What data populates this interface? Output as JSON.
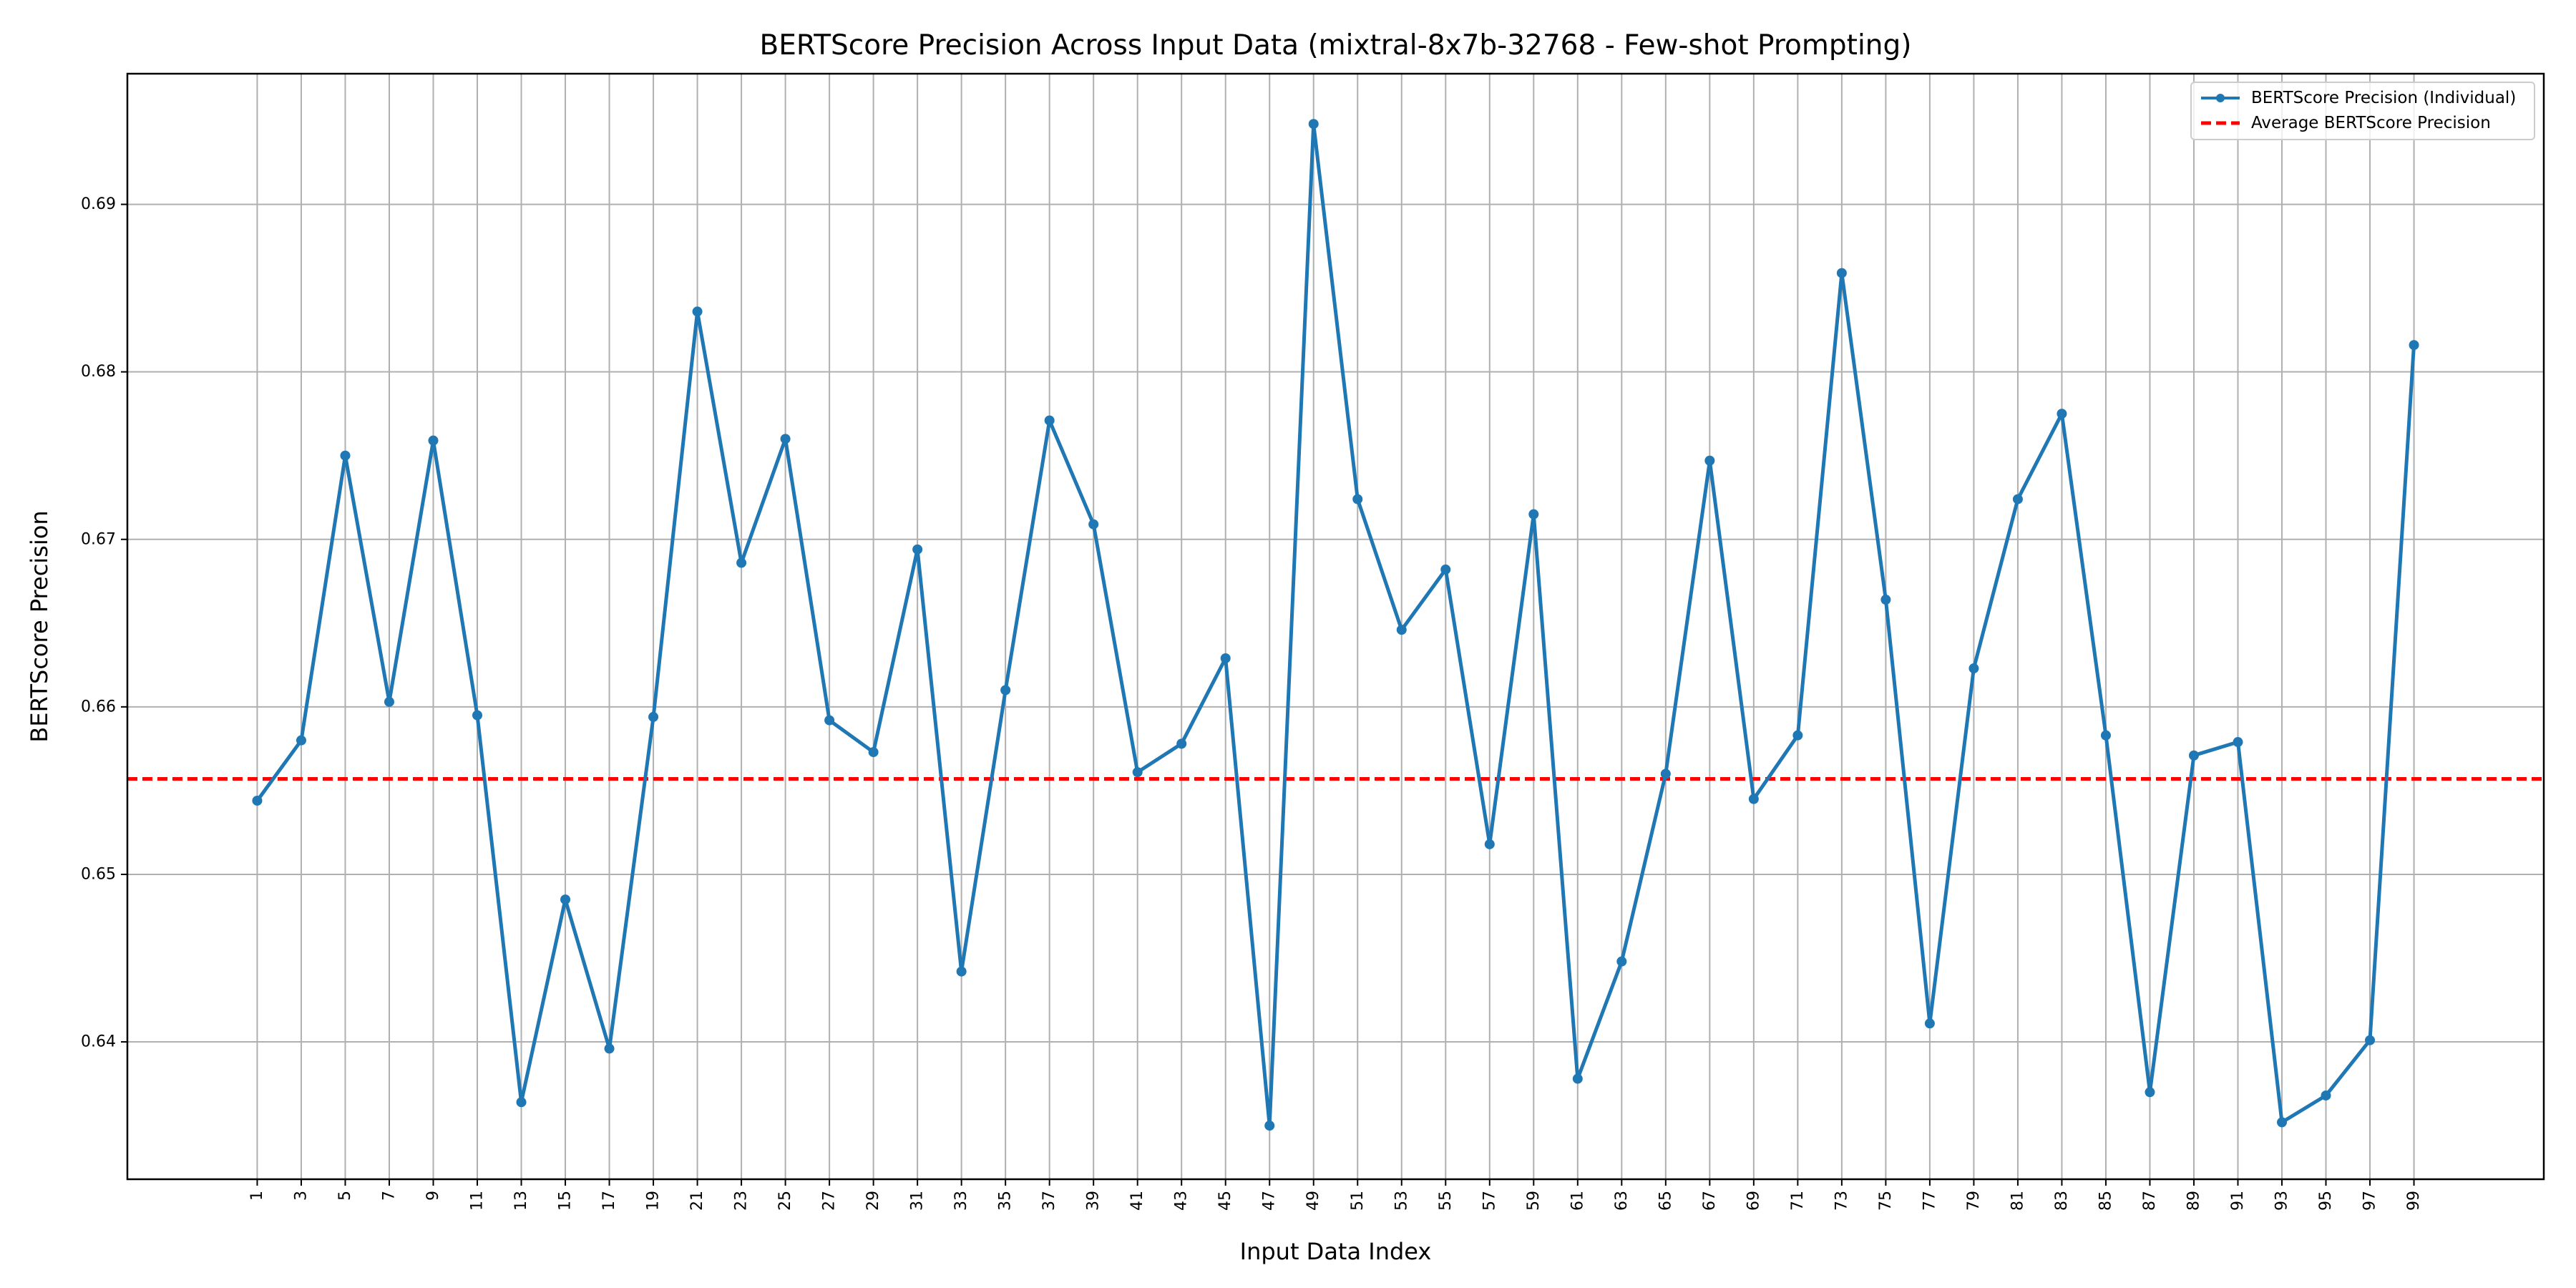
{
  "chart_data": {
    "type": "line",
    "title": "BERTScore Precision Across Input Data (mixtral-8x7b-32768 - Few-shot Prompting)",
    "xlabel": "Input Data Index",
    "ylabel": "BERTScore Precision",
    "x": [
      1,
      3,
      5,
      7,
      9,
      11,
      13,
      15,
      17,
      19,
      21,
      23,
      25,
      27,
      29,
      31,
      33,
      35,
      37,
      39,
      41,
      43,
      45,
      47,
      49,
      51,
      53,
      55,
      57,
      59,
      61,
      63,
      65,
      67,
      69,
      71,
      73,
      75,
      77,
      79,
      81,
      83,
      85,
      87,
      89,
      91,
      93,
      95,
      97,
      99
    ],
    "xlim": [
      -4.9,
      104.9
    ],
    "ylim": [
      0.6318,
      0.6978
    ],
    "yticks": [
      0.64,
      0.65,
      0.66,
      0.67,
      0.68,
      0.69
    ],
    "ytick_labels": [
      "0.64",
      "0.65",
      "0.66",
      "0.67",
      "0.68",
      "0.69"
    ],
    "grid": true,
    "legend_position": "upper right",
    "series": [
      {
        "name": "BERTScore Precision (Individual)",
        "color": "#1f77b4",
        "style": "solid-with-markers",
        "values": [
          0.6544,
          0.658,
          0.675,
          0.6603,
          0.6759,
          0.6595,
          0.6364,
          0.6485,
          0.6396,
          0.6594,
          0.6836,
          0.6686,
          0.676,
          0.6592,
          0.6573,
          0.6694,
          0.6442,
          0.661,
          0.6771,
          0.6709,
          0.6561,
          0.6578,
          0.6629,
          0.635,
          0.6948,
          0.6724,
          0.6646,
          0.6682,
          0.6518,
          0.6715,
          0.6378,
          0.6448,
          0.656,
          0.6747,
          0.6545,
          0.6583,
          0.6859,
          0.6664,
          0.6411,
          0.6623,
          0.6724,
          0.6775,
          0.6583,
          0.637,
          0.6571,
          0.6579,
          0.6352,
          0.6368,
          0.6401,
          0.6816
        ]
      },
      {
        "name": "Average BERTScore Precision",
        "color": "#ff0000",
        "style": "dashed",
        "value": 0.6557
      }
    ]
  }
}
